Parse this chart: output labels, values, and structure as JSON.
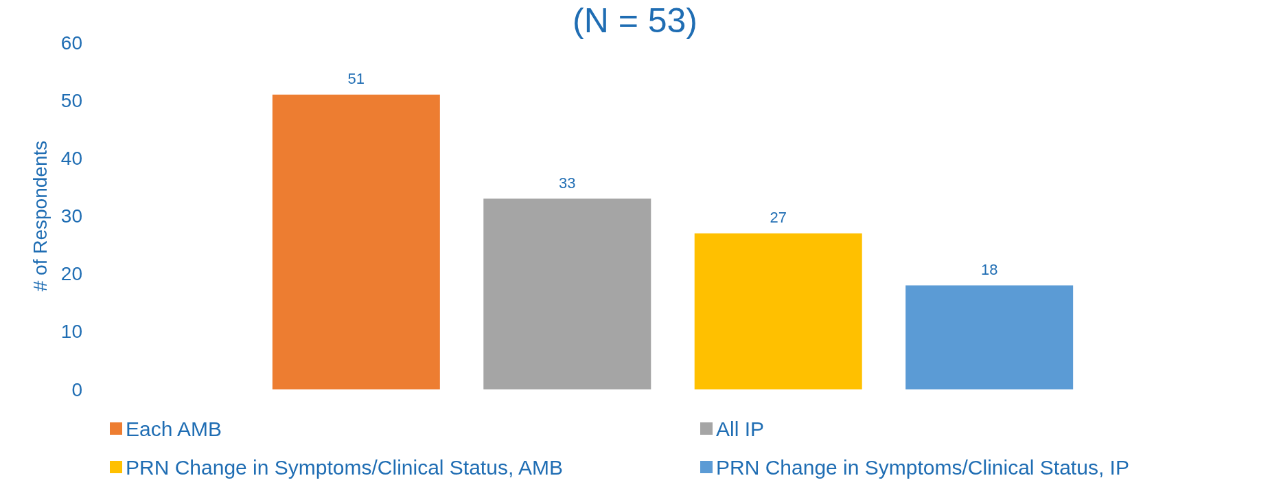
{
  "chart_data": {
    "type": "bar",
    "title": "(N = 53)",
    "ylabel": "# of Respondents",
    "categories": [
      null
    ],
    "series": [
      {
        "name": "Each AMB",
        "color": "#ed7d31",
        "values": [
          51
        ]
      },
      {
        "name": "All IP",
        "color": "#a5a5a5",
        "values": [
          33
        ]
      },
      {
        "name": "PRN Change in Symptoms/Clinical Status, AMB",
        "color": "#ffc000",
        "values": [
          27
        ]
      },
      {
        "name": "PRN Change in Symptoms/Clinical Status, IP",
        "color": "#5b9bd5",
        "values": [
          18
        ]
      }
    ],
    "ylim": [
      0,
      60
    ],
    "yticks": [
      0,
      10,
      20,
      30,
      40,
      50,
      60
    ],
    "grid": false,
    "legend": "bottom",
    "data_labels": true
  }
}
